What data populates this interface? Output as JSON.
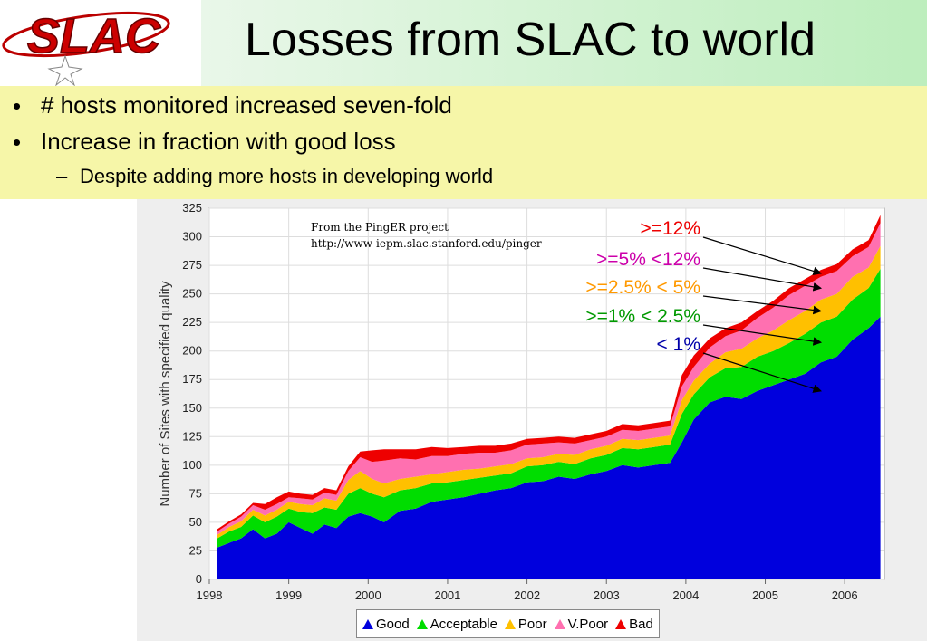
{
  "slide": {
    "title": "Losses from SLAC to world",
    "logo_text": "SLAC",
    "bullets": [
      "# hosts monitored increased seven-fold",
      "Increase in fraction with good loss"
    ],
    "sub_bullet": "Despite adding more hosts in developing world"
  },
  "colors": {
    "good": "#0000dd",
    "acceptable": "#00dd00",
    "poor": "#ffc000",
    "vpoor": "#ff70b0",
    "bad": "#ee0000"
  },
  "chart_data": {
    "type": "area",
    "stacked": true,
    "xlabel": "",
    "ylabel": "Number of Sites with specified quality",
    "ylim": [
      0,
      325
    ],
    "yticks": [
      0,
      25,
      50,
      75,
      100,
      125,
      150,
      175,
      200,
      225,
      250,
      275,
      300,
      325
    ],
    "xlim": [
      1998,
      2006.5
    ],
    "xticks": [
      "1998",
      "1999",
      "2000",
      "2001",
      "2002",
      "2003",
      "2004",
      "2005",
      "2006"
    ],
    "grid": true,
    "legend_position": "bottom",
    "note_lines": [
      "From the PingER project",
      "http://www-iepm.slac.stanford.edu/pinger"
    ],
    "x": [
      1998.1,
      1998.25,
      1998.4,
      1998.55,
      1998.7,
      1998.85,
      1999.0,
      1999.15,
      1999.3,
      1999.45,
      1999.6,
      1999.75,
      1999.9,
      2000.05,
      2000.2,
      2000.4,
      2000.6,
      2000.8,
      2001.0,
      2001.2,
      2001.4,
      2001.6,
      2001.8,
      2002.0,
      2002.2,
      2002.4,
      2002.6,
      2002.8,
      2003.0,
      2003.2,
      2003.4,
      2003.6,
      2003.8,
      2003.95,
      2004.1,
      2004.3,
      2004.5,
      2004.7,
      2004.9,
      2005.1,
      2005.3,
      2005.5,
      2005.7,
      2005.9,
      2006.1,
      2006.3,
      2006.45
    ],
    "series": [
      {
        "name": "Good",
        "values": [
          28,
          32,
          36,
          44,
          36,
          40,
          50,
          45,
          40,
          48,
          45,
          55,
          58,
          55,
          50,
          60,
          62,
          68,
          70,
          72,
          75,
          78,
          80,
          85,
          86,
          90,
          88,
          92,
          95,
          100,
          98,
          100,
          102,
          120,
          140,
          155,
          160,
          158,
          165,
          170,
          175,
          180,
          190,
          195,
          210,
          220,
          230
        ]
      },
      {
        "name": "Acceptable",
        "values": [
          8,
          10,
          10,
          12,
          14,
          15,
          12,
          14,
          18,
          15,
          16,
          20,
          22,
          20,
          22,
          18,
          18,
          16,
          15,
          15,
          14,
          13,
          13,
          14,
          14,
          13,
          13,
          14,
          14,
          15,
          16,
          16,
          16,
          25,
          22,
          22,
          25,
          28,
          30,
          30,
          32,
          35,
          35,
          35,
          35,
          35,
          42
        ]
      },
      {
        "name": "Poor",
        "values": [
          3,
          4,
          5,
          5,
          6,
          6,
          6,
          7,
          7,
          8,
          8,
          12,
          15,
          13,
          12,
          10,
          10,
          8,
          9,
          9,
          8,
          8,
          8,
          7,
          7,
          7,
          8,
          8,
          8,
          8,
          8,
          8,
          8,
          12,
          12,
          12,
          14,
          16,
          16,
          18,
          20,
          20,
          20,
          20,
          20,
          18,
          20
        ]
      },
      {
        "name": "V.Poor",
        "values": [
          3,
          3,
          4,
          4,
          5,
          5,
          4,
          5,
          5,
          5,
          5,
          8,
          12,
          15,
          20,
          18,
          15,
          16,
          14,
          14,
          14,
          12,
          12,
          12,
          12,
          10,
          10,
          8,
          8,
          8,
          8,
          8,
          8,
          12,
          12,
          14,
          14,
          16,
          18,
          20,
          22,
          22,
          20,
          20,
          18,
          18,
          20
        ]
      },
      {
        "name": "Bad",
        "values": [
          2,
          2,
          2,
          2,
          5,
          6,
          5,
          4,
          4,
          4,
          4,
          4,
          5,
          10,
          10,
          8,
          9,
          8,
          7,
          6,
          6,
          6,
          6,
          5,
          5,
          5,
          5,
          5,
          5,
          5,
          5,
          5,
          5,
          10,
          10,
          8,
          7,
          7,
          6,
          6,
          6,
          6,
          6,
          6,
          6,
          6,
          7
        ]
      }
    ]
  },
  "annotations": [
    {
      "label": ">=12%",
      "color": "#ee0000"
    },
    {
      "label": ">=5% <12%",
      "color": "#cc00aa"
    },
    {
      "label": ">=2.5% < 5%",
      "color": "#ff9900"
    },
    {
      "label": ">=1% < 2.5%",
      "color": "#009900"
    },
    {
      "label": "< 1%",
      "color": "#0000aa"
    }
  ]
}
